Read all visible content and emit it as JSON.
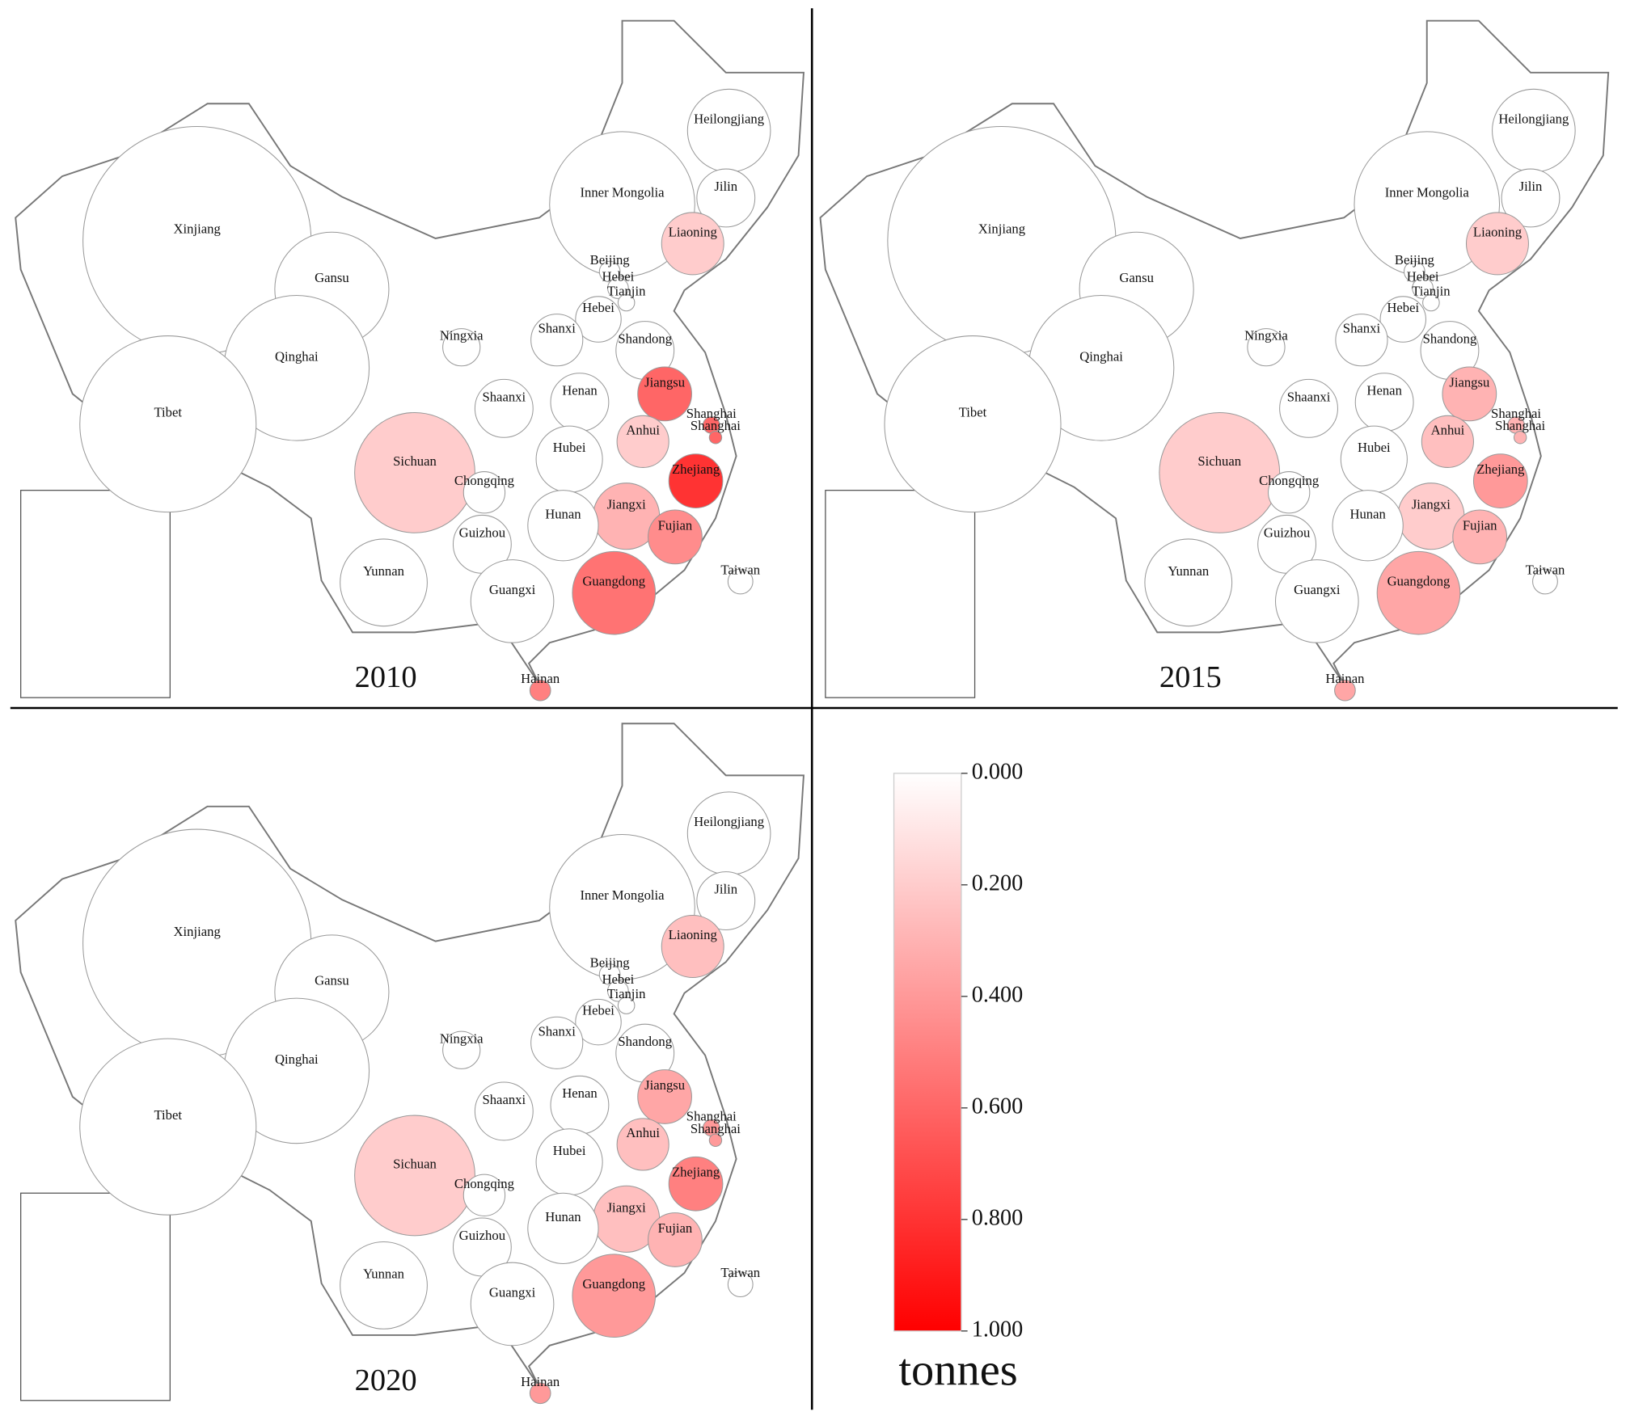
{
  "provinces": [
    "Heilongjiang",
    "Inner Mongolia",
    "Jilin",
    "Liaoning",
    "Xinjiang",
    "Gansu",
    "Beijing",
    "Hebei",
    "Tianjin",
    "Hebei",
    "Qinghai",
    "Ningxia",
    "Shanxi",
    "Shandong",
    "Tibet",
    "Shaanxi",
    "Henan",
    "Jiangsu",
    "Shanghai",
    "Shanghai",
    "Anhui",
    "Sichuan",
    "Hubei",
    "Chongqing",
    "Zhejiang",
    "Jiangxi",
    "Hunan",
    "Guizhou",
    "Fujian",
    "Yunnan",
    "Taiwan",
    "Guangxi",
    "Guangdong",
    "Hainan"
  ],
  "maps": [
    {
      "year": "2010",
      "values": [
        0,
        0,
        0,
        0.2,
        0,
        0,
        0,
        0,
        0,
        0,
        0,
        0,
        0,
        0,
        0,
        0,
        0,
        0.6,
        0.6,
        0.6,
        0.2,
        0.2,
        0,
        0,
        0.8,
        0.3,
        0,
        0,
        0.45,
        0,
        0,
        0,
        0.55,
        0.5
      ]
    },
    {
      "year": "2015",
      "values": [
        0,
        0,
        0,
        0.2,
        0,
        0,
        0,
        0,
        0,
        0,
        0,
        0,
        0,
        0,
        0,
        0,
        0,
        0.3,
        0.3,
        0.3,
        0.25,
        0.2,
        0,
        0,
        0.4,
        0.2,
        0,
        0,
        0.3,
        0,
        0,
        0,
        0.35,
        0.35
      ]
    },
    {
      "year": "2020",
      "values": [
        0,
        0,
        0,
        0.25,
        0,
        0,
        0,
        0,
        0,
        0,
        0,
        0,
        0,
        0,
        0,
        0,
        0,
        0.35,
        0.4,
        0.4,
        0.25,
        0.2,
        0,
        0,
        0.5,
        0.25,
        0,
        0,
        0.3,
        0,
        0,
        0,
        0.4,
        0.4
      ]
    }
  ],
  "colorbar": {
    "range": [
      0,
      1
    ],
    "colors": [
      "#ffffff",
      "#ff0000"
    ],
    "ticks": [
      {
        "value": 0,
        "label": "0.000"
      },
      {
        "value": 0.2,
        "label": "0.200"
      },
      {
        "value": 0.4,
        "label": "0.400"
      },
      {
        "value": 0.6,
        "label": "0.600"
      },
      {
        "value": 0.8,
        "label": "0.800"
      },
      {
        "value": 1,
        "label": "1.000"
      }
    ],
    "unit": "tonnes"
  }
}
